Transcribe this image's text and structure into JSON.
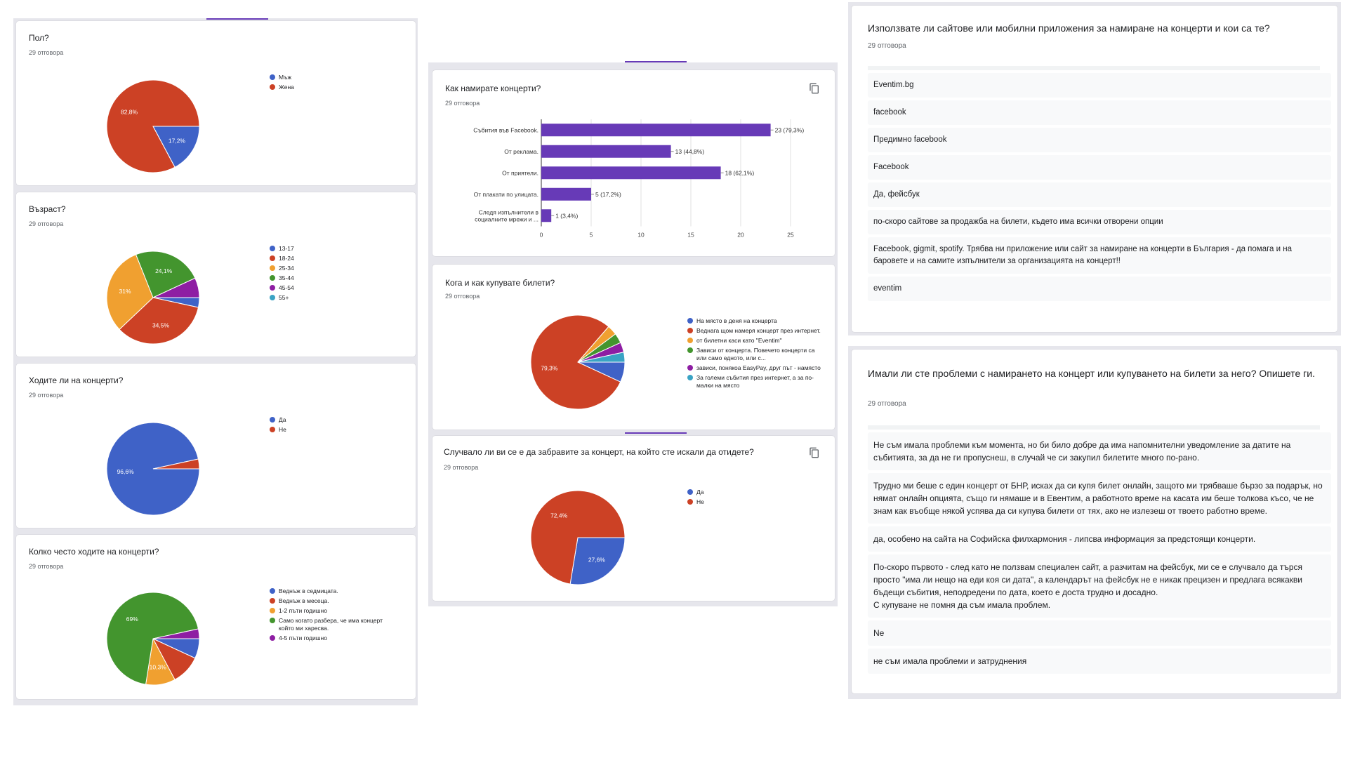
{
  "colors": {
    "blue": "#3f62c7",
    "red": "#cc4125",
    "orange": "#f0a030",
    "green": "#43952e",
    "purple": "#8e1ea3",
    "teal": "#3aa3c4",
    "bar": "#673ab7",
    "tab": "#673ab7"
  },
  "col1": {
    "gender": {
      "title": "Пол?",
      "count": "29 отговора",
      "legend": [
        "Мъж",
        "Жена"
      ],
      "slice_labels": [
        "17,2%",
        "82,8%"
      ],
      "chart_data": {
        "type": "pie",
        "categories": [
          "Мъж",
          "Жена"
        ],
        "values": [
          17.2,
          82.8
        ],
        "legend_position": "right"
      }
    },
    "age": {
      "title": "Възраст?",
      "count": "29 отговора",
      "legend": [
        "13-17",
        "18-24",
        "25-34",
        "35-44",
        "45-54",
        "55+"
      ],
      "slice_labels": [
        "",
        "34,5%",
        "31%",
        "24,1%",
        "",
        ""
      ],
      "chart_data": {
        "type": "pie",
        "categories": [
          "13-17",
          "18-24",
          "25-34",
          "35-44",
          "45-54",
          "55+"
        ],
        "values": [
          3.4,
          34.5,
          31.0,
          24.1,
          6.9,
          0
        ],
        "legend_position": "right"
      }
    },
    "attend": {
      "title": "Ходите ли на концерти?",
      "count": "29 отговора",
      "legend": [
        "Да",
        "Не"
      ],
      "slice_labels": [
        "96,6%",
        ""
      ],
      "chart_data": {
        "type": "pie",
        "categories": [
          "Да",
          "Не"
        ],
        "values": [
          96.6,
          3.4
        ],
        "legend_position": "right"
      }
    },
    "frequency": {
      "title": "Колко често ходите на концерти?",
      "count": "29 отговора",
      "legend": [
        "Веднъж в седмицата.",
        "Веднъж в месеца.",
        "1-2 пъти годишно",
        "Само когато разбера, че има концерт който ми харесва.",
        "4-5 пъти годишно"
      ],
      "slice_labels": [
        "",
        "",
        "10,3%",
        "69%",
        ""
      ],
      "chart_data": {
        "type": "pie",
        "categories": [
          "Веднъж в седмицата.",
          "Веднъж в месеца.",
          "1-2 пъти годишно",
          "Само когато разбера, че има концерт който ми харесва.",
          "4-5 пъти годишно"
        ],
        "values": [
          6.9,
          10.3,
          10.3,
          69.0,
          3.4
        ],
        "legend_position": "right"
      }
    }
  },
  "col2": {
    "find": {
      "title": "Как намирате концерти?",
      "count": "29 отговора",
      "categories": [
        "Събития във Facebook.",
        "От реклама.",
        "От приятели.",
        "От плакати по улицата.",
        "Следя изпълнители в социалните мрежи и ..."
      ],
      "value_labels": [
        "23 (79,3%)",
        "13 (44,8%)",
        "18 (62,1%)",
        "5 (17,2%)",
        "1 (3,4%)"
      ],
      "ticks": [
        "0",
        "5",
        "10",
        "15",
        "20",
        "25"
      ],
      "chart_data": {
        "type": "bar",
        "orientation": "horizontal",
        "categories": [
          "Събития във Facebook.",
          "От реклама.",
          "От приятели.",
          "От плакати по улицата.",
          "Следя изпълнители в социалните мрежи и ..."
        ],
        "values": [
          23,
          13,
          18,
          5,
          1
        ],
        "xlim": [
          0,
          25
        ],
        "grid": true
      }
    },
    "buy": {
      "title": "Кога и как купувате билети?",
      "count": "29 отговора",
      "legend": [
        "На място в деня на концерта",
        "Веднага щом намеря концерт през интернет.",
        "от билетни каси като \"Eventim\"",
        "Зависи от концерта. Повечето концерти са или само едното, или с...",
        "зависи, понякоа EasyPay, друг път - намясто",
        "За големи събития през интернет, а за по-малки на място"
      ],
      "slice_labels": [
        "",
        "79,3%",
        "",
        "",
        "",
        ""
      ],
      "chart_data": {
        "type": "pie",
        "categories": [
          "На място в деня на концерта",
          "Веднага щом намеря концерт през интернет.",
          "от билетни каси като \"Eventim\"",
          "Зависи от концерта. Повечето концерти са или само едното, или с...",
          "зависи, понякоа EasyPay, друг път - намясто",
          "За големи събития през интернет, а за по-малки на място"
        ],
        "values": [
          6.9,
          79.3,
          3.4,
          3.4,
          3.4,
          3.4
        ],
        "legend_position": "right"
      }
    },
    "forgot": {
      "title": "Случвало ли ви се е да забравите за концерт, на който сте искали да отидете?",
      "count": "29 отговора",
      "legend": [
        "Да",
        "Не"
      ],
      "slice_labels": [
        "27,6%",
        "72,4%"
      ],
      "chart_data": {
        "type": "pie",
        "categories": [
          "Да",
          "Не"
        ],
        "values": [
          27.6,
          72.4
        ],
        "legend_position": "right"
      }
    }
  },
  "col3": {
    "apps": {
      "title": "Използвате ли сайтове или мобилни приложения за намиране на концерти и кои са те?",
      "count": "29 отговора",
      "responses": [
        "Eventim.bg",
        "facebook",
        "Предимно facebook",
        "Facebook",
        "Да, фейсбук",
        "по-скоро сайтове за продажба на билети, където има всички отворени опции",
        "Facebook, gigmit, spotify. Трябва ни приложение или сайт за намиране на концерти в България - да помага и на баровете и на самите изпълнители за организацията на концерт!!",
        "eventim"
      ]
    },
    "problems": {
      "title": "Имали ли сте проблеми с намирането на концерт или купуването на билети за него? Опишете ги.",
      "count": "29 отговора",
      "responses": [
        "Не съм имала проблеми към момента, но би било добре да има напомнителни уведомление за датите на събитията, за да не ги пропуснеш, в случай че си закупил билетите много по-рано.",
        "Трудно ми беше с един концерт от БНР, исках да си купя билет онлайн, защото ми трябваше бързо за подарък, но нямат онлайн опцията, също ги нямаше и в Евентим, а работното време на касата им беше толкова късо, че не знам как въобще някой успява да си купува билети от тях, ако не излезеш от твоето работно време.",
        "да, особено на сайта на Софийска филхармония - липсва информация за предстоящи концерти.",
        "По-скоро първото - след като не ползвам специален сайт, а разчитам на фейсбук, ми се е случвало да търся просто \"има ли нещо на еди коя си дата\", а календарът на фейсбук не е никак прецизен и предлага всякакви бъдещи събития, неподредени по дата, което е доста трудно и досадно.\nС купуване не помня да съм имала проблем.",
        "Ne",
        "не съм имала проблеми и затруднения"
      ]
    }
  }
}
